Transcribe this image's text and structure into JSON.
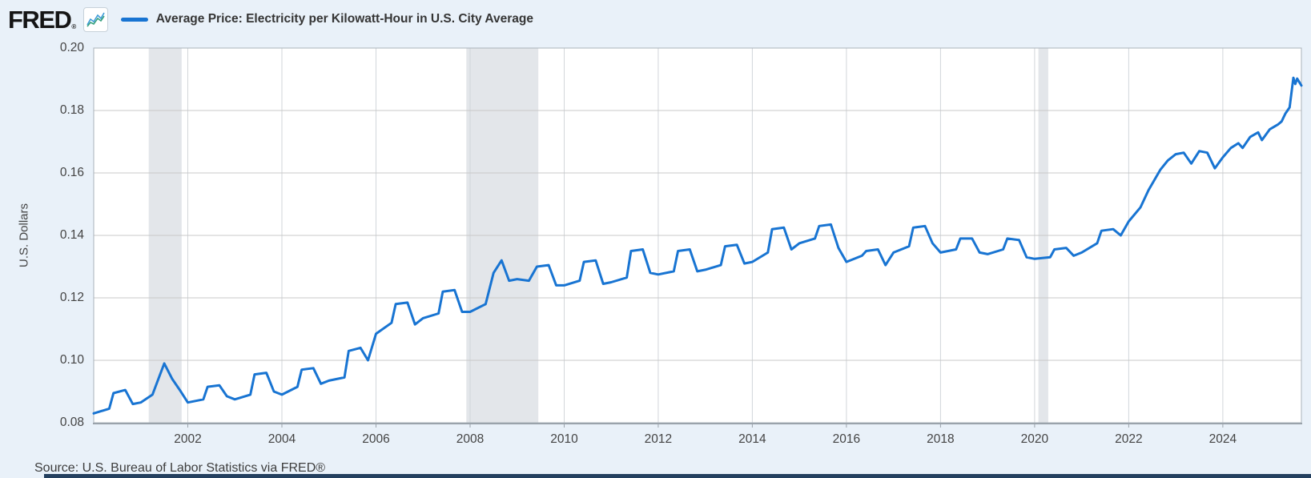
{
  "header": {
    "brand": "FRED",
    "registered_mark": "®",
    "legend_label": "Average Price: Electricity per Kilowatt-Hour in U.S. City Average"
  },
  "y_axis": {
    "label": "U.S. Dollars"
  },
  "source": {
    "text": "Source: U.S. Bureau of Labor Statistics via FRED®"
  },
  "colors": {
    "page_background": "#e9f1f9",
    "plot_background": "#ffffff",
    "line": "#1874d2",
    "grid_horizontal": "#c8c8c8",
    "grid_vertical": "#d2d6da",
    "plot_border": "#aab3bb",
    "axis_line": "#9aa3ab",
    "recession_band": "#e3e6ea",
    "tick_text": "#444444",
    "footer_bar": "#24405f"
  },
  "chart_data": {
    "type": "line",
    "title": "Average Price: Electricity per Kilowatt-Hour in U.S. City Average",
    "xlabel": "",
    "ylabel": "U.S. Dollars",
    "xlim": [
      2000,
      2025.67
    ],
    "ylim": [
      0.08,
      0.2
    ],
    "grid": true,
    "legend_position": "top-left",
    "y_ticks": [
      {
        "v": 0.2,
        "label": "0.20"
      },
      {
        "v": 0.18,
        "label": "0.18"
      },
      {
        "v": 0.16,
        "label": "0.16"
      },
      {
        "v": 0.14,
        "label": "0.14"
      },
      {
        "v": 0.12,
        "label": "0.12"
      },
      {
        "v": 0.1,
        "label": "0.10"
      },
      {
        "v": 0.08,
        "label": "0.08"
      }
    ],
    "x_ticks": [
      {
        "v": 2002,
        "label": "2002"
      },
      {
        "v": 2004,
        "label": "2004"
      },
      {
        "v": 2006,
        "label": "2006"
      },
      {
        "v": 2008,
        "label": "2008"
      },
      {
        "v": 2010,
        "label": "2010"
      },
      {
        "v": 2012,
        "label": "2012"
      },
      {
        "v": 2014,
        "label": "2014"
      },
      {
        "v": 2016,
        "label": "2016"
      },
      {
        "v": 2018,
        "label": "2018"
      },
      {
        "v": 2020,
        "label": "2020"
      },
      {
        "v": 2022,
        "label": "2022"
      },
      {
        "v": 2024,
        "label": "2024"
      }
    ],
    "recession_bands": [
      {
        "start": 2001.17,
        "end": 2001.87
      },
      {
        "start": 2007.92,
        "end": 2009.45
      },
      {
        "start": 2020.08,
        "end": 2020.29
      }
    ],
    "series": [
      {
        "name": "Average Price: Electricity per Kilowatt-Hour in U.S. City Average",
        "color": "#1874d2",
        "units": "U.S. Dollars",
        "points": [
          [
            2000.0,
            0.083
          ],
          [
            2000.33,
            0.0845
          ],
          [
            2000.42,
            0.0895
          ],
          [
            2000.67,
            0.0905
          ],
          [
            2000.83,
            0.086
          ],
          [
            2001.0,
            0.0865
          ],
          [
            2001.25,
            0.089
          ],
          [
            2001.5,
            0.099
          ],
          [
            2001.67,
            0.094
          ],
          [
            2001.83,
            0.0905
          ],
          [
            2002.0,
            0.0865
          ],
          [
            2002.33,
            0.0875
          ],
          [
            2002.42,
            0.0915
          ],
          [
            2002.67,
            0.092
          ],
          [
            2002.83,
            0.0885
          ],
          [
            2003.0,
            0.0875
          ],
          [
            2003.33,
            0.089
          ],
          [
            2003.42,
            0.0955
          ],
          [
            2003.67,
            0.096
          ],
          [
            2003.83,
            0.09
          ],
          [
            2004.0,
            0.089
          ],
          [
            2004.33,
            0.0915
          ],
          [
            2004.42,
            0.097
          ],
          [
            2004.67,
            0.0975
          ],
          [
            2004.83,
            0.0925
          ],
          [
            2005.0,
            0.0935
          ],
          [
            2005.33,
            0.0945
          ],
          [
            2005.42,
            0.103
          ],
          [
            2005.67,
            0.104
          ],
          [
            2005.83,
            0.1
          ],
          [
            2006.0,
            0.1085
          ],
          [
            2006.33,
            0.112
          ],
          [
            2006.42,
            0.118
          ],
          [
            2006.67,
            0.1185
          ],
          [
            2006.83,
            0.1115
          ],
          [
            2007.0,
            0.1135
          ],
          [
            2007.33,
            0.115
          ],
          [
            2007.42,
            0.122
          ],
          [
            2007.67,
            0.1225
          ],
          [
            2007.83,
            0.1155
          ],
          [
            2008.0,
            0.1155
          ],
          [
            2008.33,
            0.118
          ],
          [
            2008.5,
            0.128
          ],
          [
            2008.67,
            0.132
          ],
          [
            2008.83,
            0.1255
          ],
          [
            2009.0,
            0.126
          ],
          [
            2009.25,
            0.1255
          ],
          [
            2009.42,
            0.13
          ],
          [
            2009.67,
            0.1305
          ],
          [
            2009.83,
            0.124
          ],
          [
            2010.0,
            0.124
          ],
          [
            2010.33,
            0.1255
          ],
          [
            2010.42,
            0.1315
          ],
          [
            2010.67,
            0.132
          ],
          [
            2010.83,
            0.1245
          ],
          [
            2011.0,
            0.125
          ],
          [
            2011.33,
            0.1265
          ],
          [
            2011.42,
            0.135
          ],
          [
            2011.67,
            0.1355
          ],
          [
            2011.83,
            0.128
          ],
          [
            2012.0,
            0.1275
          ],
          [
            2012.33,
            0.1285
          ],
          [
            2012.42,
            0.135
          ],
          [
            2012.67,
            0.1355
          ],
          [
            2012.83,
            0.1285
          ],
          [
            2013.0,
            0.129
          ],
          [
            2013.33,
            0.1305
          ],
          [
            2013.42,
            0.1365
          ],
          [
            2013.67,
            0.137
          ],
          [
            2013.83,
            0.131
          ],
          [
            2014.0,
            0.1315
          ],
          [
            2014.33,
            0.1345
          ],
          [
            2014.42,
            0.142
          ],
          [
            2014.67,
            0.1425
          ],
          [
            2014.83,
            0.1355
          ],
          [
            2015.0,
            0.1375
          ],
          [
            2015.33,
            0.139
          ],
          [
            2015.42,
            0.143
          ],
          [
            2015.67,
            0.1435
          ],
          [
            2015.83,
            0.136
          ],
          [
            2016.0,
            0.1315
          ],
          [
            2016.33,
            0.1335
          ],
          [
            2016.42,
            0.135
          ],
          [
            2016.67,
            0.1355
          ],
          [
            2016.83,
            0.1305
          ],
          [
            2017.0,
            0.1345
          ],
          [
            2017.33,
            0.1365
          ],
          [
            2017.42,
            0.1425
          ],
          [
            2017.67,
            0.143
          ],
          [
            2017.83,
            0.1375
          ],
          [
            2018.0,
            0.1345
          ],
          [
            2018.33,
            0.1355
          ],
          [
            2018.42,
            0.139
          ],
          [
            2018.67,
            0.139
          ],
          [
            2018.83,
            0.1345
          ],
          [
            2019.0,
            0.134
          ],
          [
            2019.33,
            0.1355
          ],
          [
            2019.42,
            0.139
          ],
          [
            2019.67,
            0.1385
          ],
          [
            2019.83,
            0.133
          ],
          [
            2020.0,
            0.1325
          ],
          [
            2020.33,
            0.133
          ],
          [
            2020.42,
            0.1355
          ],
          [
            2020.67,
            0.136
          ],
          [
            2020.83,
            0.1335
          ],
          [
            2021.0,
            0.1345
          ],
          [
            2021.33,
            0.1375
          ],
          [
            2021.42,
            0.1415
          ],
          [
            2021.67,
            0.142
          ],
          [
            2021.83,
            0.14
          ],
          [
            2022.0,
            0.1445
          ],
          [
            2022.25,
            0.149
          ],
          [
            2022.42,
            0.1545
          ],
          [
            2022.67,
            0.161
          ],
          [
            2022.83,
            0.164
          ],
          [
            2023.0,
            0.166
          ],
          [
            2023.17,
            0.1665
          ],
          [
            2023.33,
            0.163
          ],
          [
            2023.5,
            0.167
          ],
          [
            2023.67,
            0.1665
          ],
          [
            2023.83,
            0.1615
          ],
          [
            2024.0,
            0.165
          ],
          [
            2024.17,
            0.168
          ],
          [
            2024.33,
            0.1695
          ],
          [
            2024.42,
            0.168
          ],
          [
            2024.58,
            0.1715
          ],
          [
            2024.75,
            0.173
          ],
          [
            2024.83,
            0.1705
          ],
          [
            2025.0,
            0.174
          ],
          [
            2025.17,
            0.1755
          ],
          [
            2025.25,
            0.1765
          ],
          [
            2025.33,
            0.179
          ],
          [
            2025.42,
            0.181
          ],
          [
            2025.5,
            0.1905
          ],
          [
            2025.54,
            0.1885
          ],
          [
            2025.58,
            0.1902
          ],
          [
            2025.67,
            0.188
          ]
        ]
      }
    ]
  }
}
